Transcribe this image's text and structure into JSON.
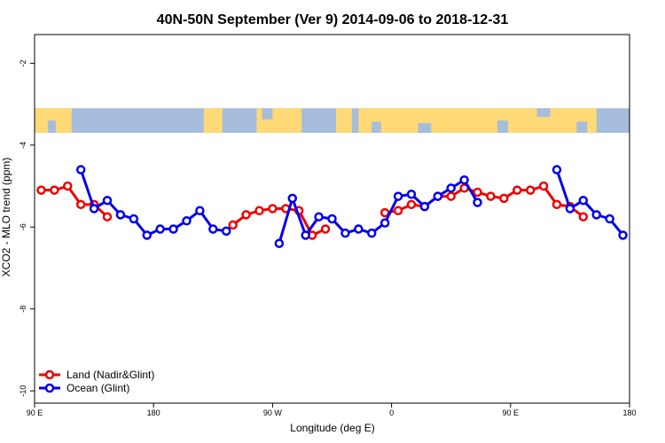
{
  "chart_data": {
    "type": "line",
    "title": "40N-50N September (Ver 9)   2014-09-06 to 2018-12-31",
    "xlabel": "Longitude (deg E)",
    "ylabel": "XCO2 - MLO trend (ppm)",
    "xlim": [
      90,
      540
    ],
    "ylim": [
      -10.3,
      -1.3
    ],
    "x_ticks": [
      {
        "value": 90,
        "label": "90 E"
      },
      {
        "value": 180,
        "label": "180"
      },
      {
        "value": 270,
        "label": "90 W"
      },
      {
        "value": 360,
        "label": "0"
      },
      {
        "value": 450,
        "label": "90 E"
      },
      {
        "value": 540,
        "label": "180"
      }
    ],
    "y_ticks": [
      {
        "value": -2,
        "label": "-2"
      },
      {
        "value": -4,
        "label": "-4"
      },
      {
        "value": -6,
        "label": "-6"
      },
      {
        "value": -8,
        "label": "-8"
      },
      {
        "value": -10,
        "label": "-10"
      }
    ],
    "map_band": {
      "y_top": -3.1,
      "y_bottom": -3.7,
      "ocean_color": "#a6bddb",
      "land_color": "#fed976"
    },
    "legend_position": "bottom-left",
    "series": [
      {
        "name": "Land (Nadir&Glint)",
        "color": "#ee0000",
        "segments": [
          [
            [
              95,
              -5.1
            ],
            [
              105,
              -5.1
            ],
            [
              115,
              -5.0
            ],
            [
              125,
              -5.45
            ],
            [
              135,
              -5.45
            ],
            [
              145,
              -5.75
            ]
          ],
          [
            [
              240,
              -5.95
            ],
            [
              250,
              -5.7
            ],
            [
              260,
              -5.6
            ],
            [
              270,
              -5.55
            ],
            [
              280,
              -5.55
            ],
            [
              290,
              -5.6
            ],
            [
              300,
              -6.2
            ],
            [
              310,
              -6.05
            ]
          ],
          [
            [
              355,
              -5.65
            ],
            [
              365,
              -5.6
            ],
            [
              375,
              -5.45
            ],
            [
              385,
              -5.5
            ],
            [
              395,
              -5.25
            ],
            [
              405,
              -5.25
            ],
            [
              415,
              -5.05
            ],
            [
              425,
              -5.15
            ],
            [
              435,
              -5.25
            ],
            [
              445,
              -5.3
            ],
            [
              455,
              -5.1
            ],
            [
              465,
              -5.1
            ],
            [
              475,
              -5.0
            ],
            [
              485,
              -5.45
            ],
            [
              495,
              -5.5
            ],
            [
              505,
              -5.75
            ]
          ]
        ]
      },
      {
        "name": "Ocean (Glint)",
        "color": "#0000ee",
        "segments": [
          [
            [
              125,
              -4.6
            ],
            [
              135,
              -5.55
            ],
            [
              145,
              -5.35
            ],
            [
              155,
              -5.7
            ],
            [
              165,
              -5.8
            ],
            [
              175,
              -6.2
            ],
            [
              185,
              -6.05
            ],
            [
              195,
              -6.05
            ],
            [
              205,
              -5.85
            ],
            [
              215,
              -5.6
            ],
            [
              225,
              -6.05
            ],
            [
              235,
              -6.1
            ]
          ],
          [
            [
              275,
              -6.4
            ],
            [
              285,
              -5.3
            ],
            [
              295,
              -6.2
            ],
            [
              305,
              -5.75
            ],
            [
              315,
              -5.8
            ],
            [
              325,
              -6.15
            ],
            [
              335,
              -6.05
            ],
            [
              345,
              -6.15
            ],
            [
              355,
              -5.9
            ],
            [
              365,
              -5.25
            ],
            [
              375,
              -5.2
            ],
            [
              385,
              -5.5
            ],
            [
              395,
              -5.25
            ],
            [
              405,
              -5.05
            ],
            [
              415,
              -4.85
            ],
            [
              425,
              -5.4
            ]
          ],
          [
            [
              485,
              -4.6
            ],
            [
              495,
              -5.55
            ],
            [
              505,
              -5.35
            ],
            [
              515,
              -5.7
            ],
            [
              525,
              -5.8
            ],
            [
              535,
              -6.2
            ]
          ]
        ]
      }
    ]
  }
}
